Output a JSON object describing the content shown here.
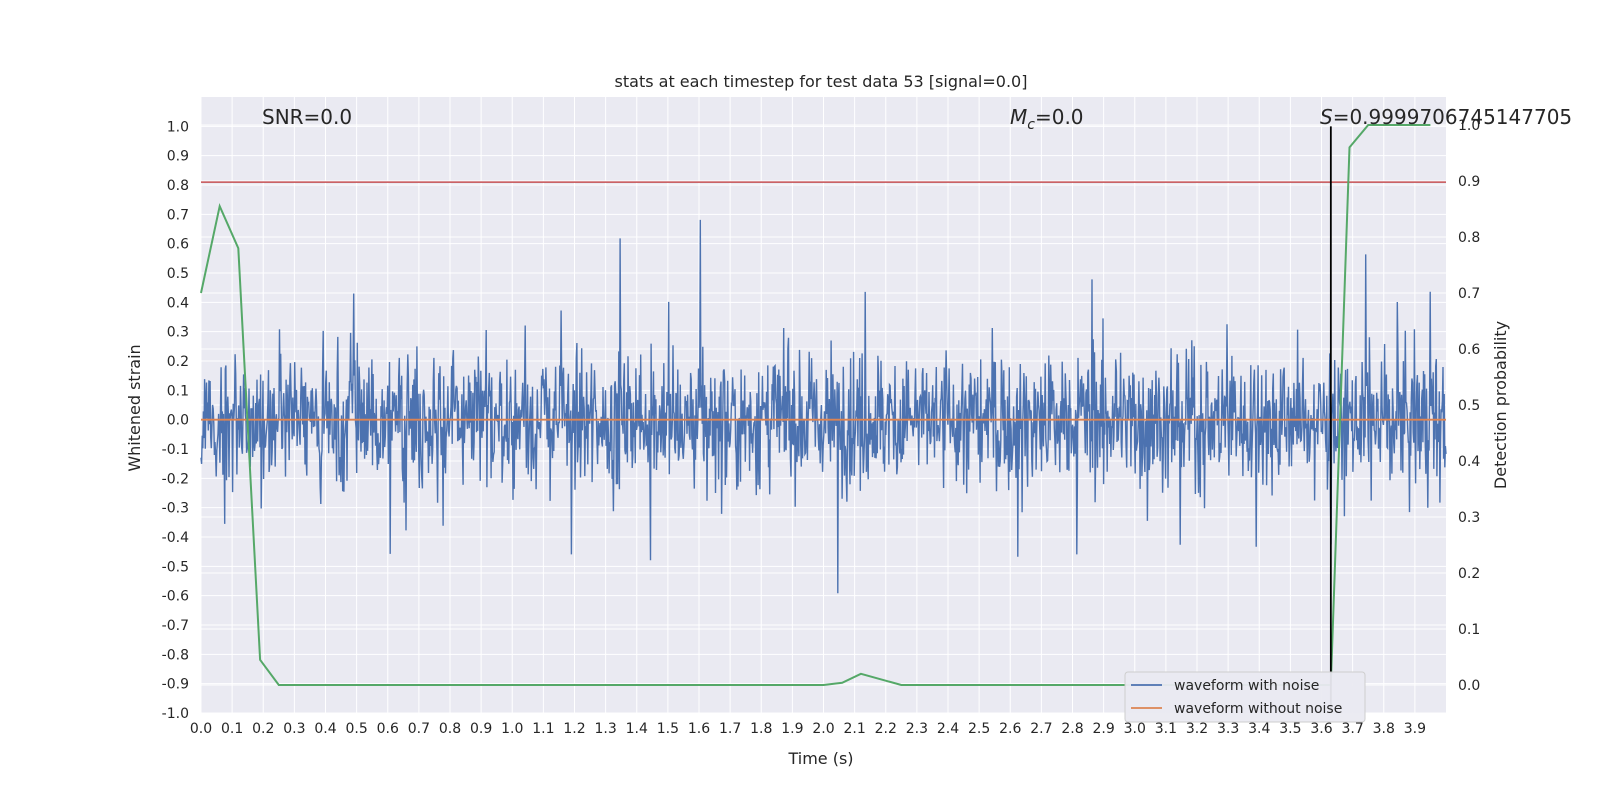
{
  "chart_data": {
    "type": "line",
    "title": "stats at each timestep for test data 53 [signal=0.0]",
    "xlabel": "Time (s)",
    "ylabel": "Whitened strain",
    "y2label": "Detection probability",
    "xlim": [
      0.0,
      4.0
    ],
    "ylim": [
      -1.0,
      1.1
    ],
    "y2lim": [
      -0.05,
      1.05
    ],
    "xticks": [
      "0.0",
      "0.1",
      "0.2",
      "0.3",
      "0.4",
      "0.5",
      "0.6",
      "0.7",
      "0.8",
      "0.9",
      "1.0",
      "1.1",
      "1.2",
      "1.3",
      "1.4",
      "1.5",
      "1.6",
      "1.7",
      "1.8",
      "1.9",
      "2.0",
      "2.1",
      "2.2",
      "2.3",
      "2.4",
      "2.5",
      "2.6",
      "2.7",
      "2.8",
      "2.9",
      "3.0",
      "3.1",
      "3.2",
      "3.3",
      "3.4",
      "3.5",
      "3.6",
      "3.7",
      "3.8",
      "3.9"
    ],
    "yticks": [
      "1.0",
      "0.9",
      "0.8",
      "0.7",
      "0.6",
      "0.5",
      "0.4",
      "0.3",
      "0.2",
      "0.1",
      "0.0",
      "-0.1",
      "-0.2",
      "-0.3",
      "-0.4",
      "-0.5",
      "-0.6",
      "-0.7",
      "-0.8",
      "-0.9",
      "-1.0"
    ],
    "y2ticks": [
      "1.0",
      "0.9",
      "0.8",
      "0.7",
      "0.6",
      "0.5",
      "0.4",
      "0.3",
      "0.2",
      "0.1",
      "0.0"
    ],
    "grid": true,
    "legend_position": "bottom-right",
    "annotations": {
      "snr": "SNR=0.0",
      "mc_symbol": "M",
      "mc_subscript": "c",
      "mc_value": "=0.0",
      "s_symbol": "S",
      "s_value": "=0.9999706745147705"
    },
    "threshold_y": 0.81,
    "vline_x": 3.63,
    "series": [
      {
        "name": "waveform with noise",
        "color": "#4c72b0",
        "noise_amplitude": 0.35,
        "seed": 53,
        "num_samples": 2048
      },
      {
        "name": "waveform without noise",
        "color": "#dd8452",
        "value": 0.0
      },
      {
        "name": "Detection probability",
        "color": "#55a868",
        "axis": "right",
        "x": [
          0.0,
          0.06,
          0.12,
          0.19,
          0.25,
          0.5,
          1.0,
          1.5,
          2.0,
          2.06,
          2.12,
          2.25,
          2.5,
          3.0,
          3.5,
          3.6,
          3.63,
          3.69,
          3.75,
          3.8,
          3.95
        ],
        "y": [
          0.7,
          0.855,
          0.78,
          0.045,
          0.0,
          0.0,
          0.0,
          0.0,
          0.0,
          0.004,
          0.02,
          0.0,
          0.0,
          0.0,
          0.0,
          0.0,
          0.0,
          0.96,
          1.0,
          1.0,
          1.0
        ]
      }
    ],
    "red_line_color": "#c44e52",
    "vline_color": "#000000"
  }
}
